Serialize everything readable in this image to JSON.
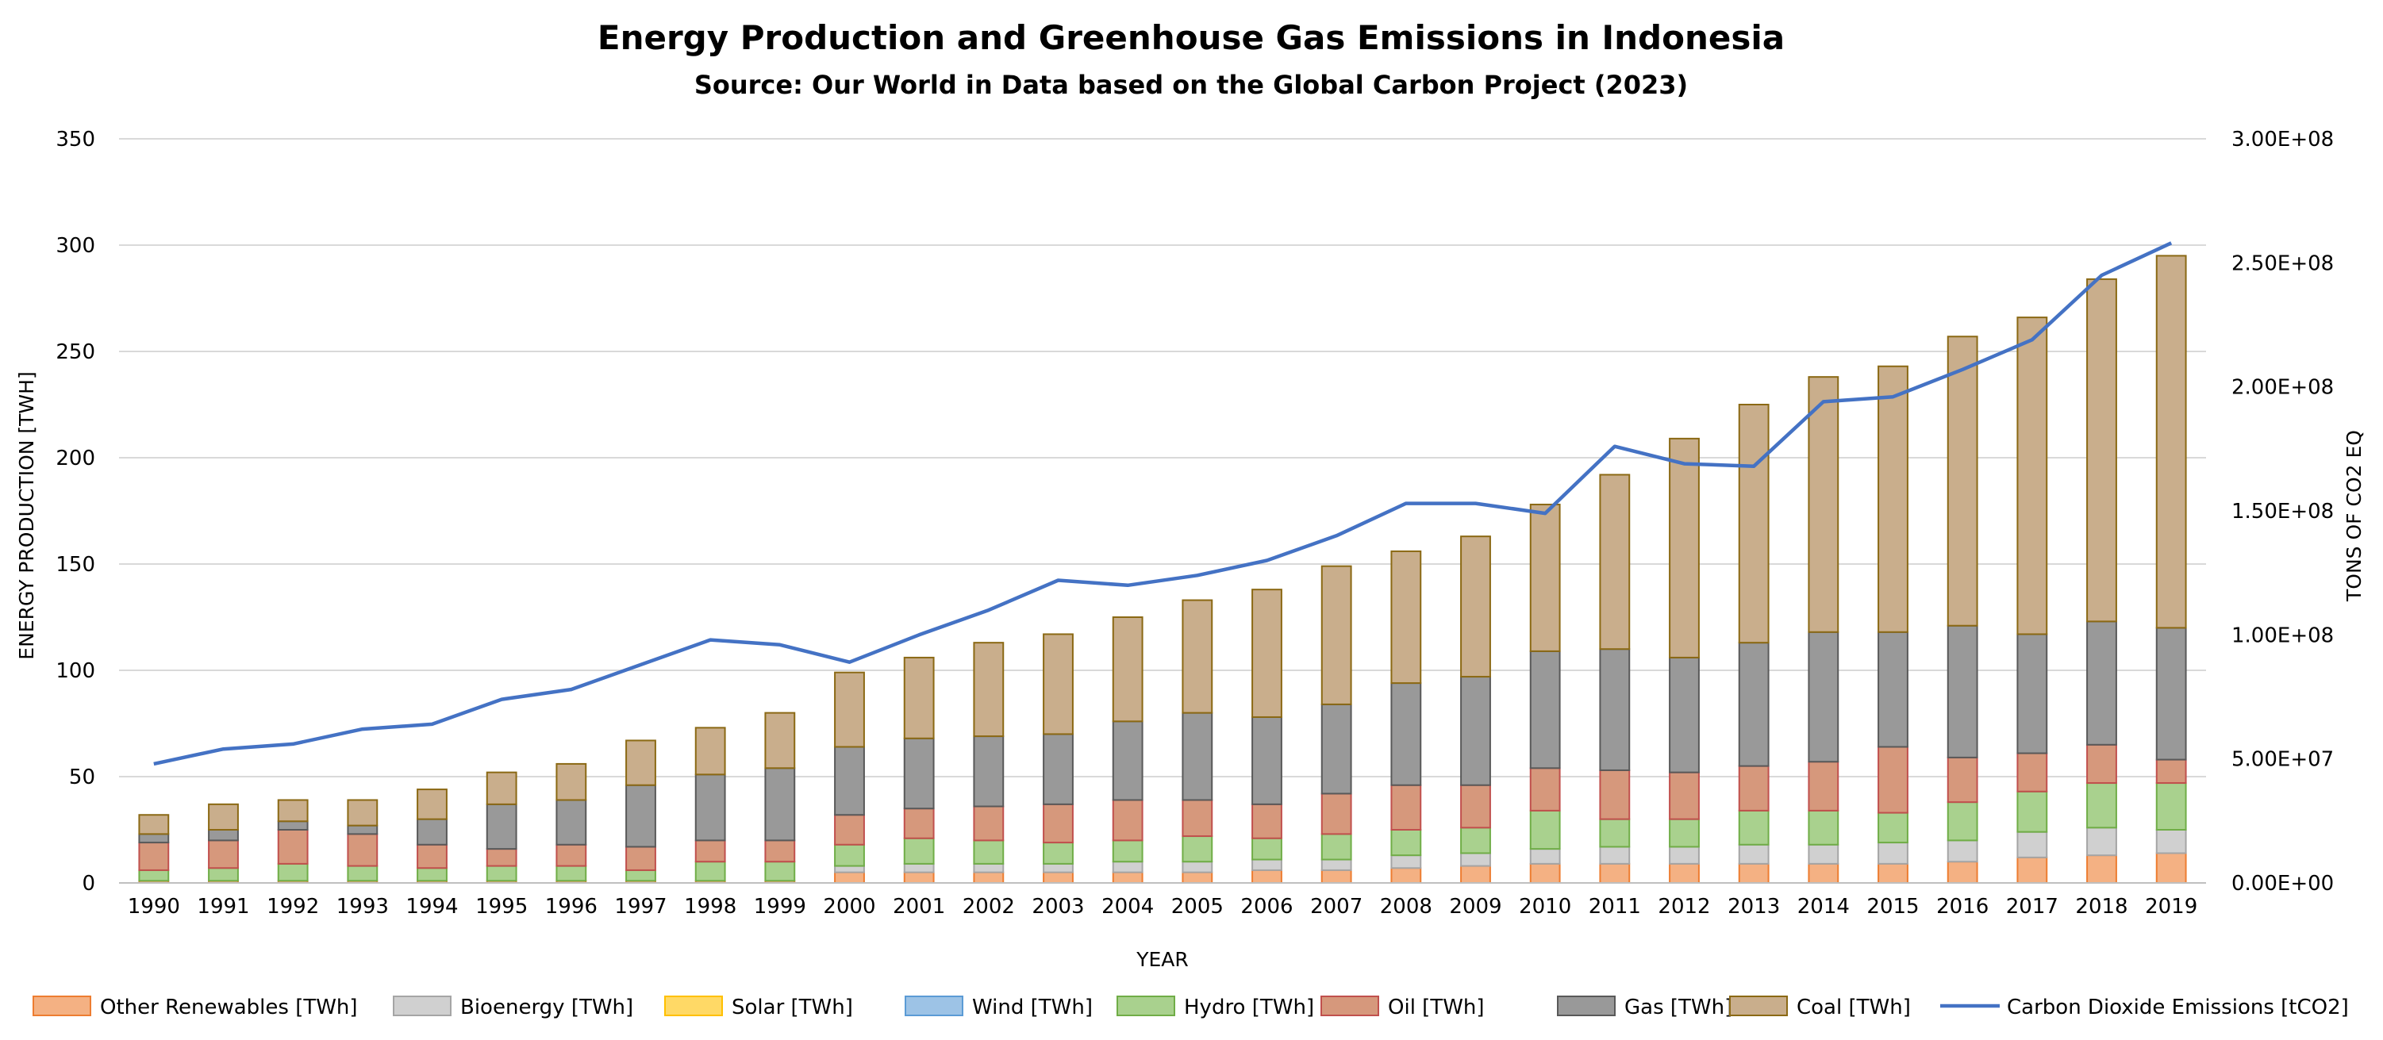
{
  "chart_data": {
    "type": "bar",
    "stacked": true,
    "title": "Energy Production and Greenhouse Gas Emissions in Indonesia",
    "subtitle": "Source: Our World in Data based on the Global Carbon Project (2023)",
    "xlabel": "YEAR",
    "ylabel": "ENERGY PRODUCTION [TWH]",
    "y2label": "TONS OF CO2 EQ",
    "ylim": [
      0,
      350
    ],
    "y2lim": [
      0,
      300000000
    ],
    "yticks": [
      "0",
      "50",
      "100",
      "150",
      "200",
      "250",
      "300",
      "350"
    ],
    "y2ticks": [
      "0.00E+00",
      "5.00E+07",
      "1.00E+08",
      "1.50E+08",
      "2.00E+08",
      "2.50E+08",
      "3.00E+08"
    ],
    "legend_position": "bottom",
    "grid": true,
    "categories": [
      "1990",
      "1991",
      "1992",
      "1993",
      "1994",
      "1995",
      "1996",
      "1997",
      "1998",
      "1999",
      "2000",
      "2001",
      "2002",
      "2003",
      "2004",
      "2005",
      "2006",
      "2007",
      "2008",
      "2009",
      "2010",
      "2011",
      "2012",
      "2013",
      "2014",
      "2015",
      "2016",
      "2017",
      "2018",
      "2019"
    ],
    "series": [
      {
        "name": "Other Renewables [TWh]",
        "color": "#f4b183",
        "edge": "#ed7d31",
        "values": [
          1,
          1,
          1,
          1,
          1,
          1,
          1,
          1,
          1,
          1,
          5,
          5,
          5,
          5,
          5,
          5,
          6,
          6,
          7,
          8,
          9,
          9,
          9,
          9,
          9,
          9,
          10,
          12,
          13,
          14
        ]
      },
      {
        "name": "Bioenergy [TWh]",
        "color": "#d0d0d0",
        "edge": "#a5a5a5",
        "values": [
          0,
          0,
          0,
          0,
          0,
          0,
          0,
          0,
          0,
          0,
          3,
          4,
          4,
          4,
          5,
          5,
          5,
          5,
          6,
          6,
          7,
          8,
          8,
          9,
          9,
          10,
          10,
          12,
          13,
          11
        ]
      },
      {
        "name": "Solar [TWh]",
        "color": "#ffd966",
        "edge": "#ffc000",
        "values": [
          0,
          0,
          0,
          0,
          0,
          0,
          0,
          0,
          0,
          0,
          0,
          0,
          0,
          0,
          0,
          0,
          0,
          0,
          0,
          0,
          0,
          0,
          0,
          0,
          0,
          0,
          0,
          0,
          0,
          0
        ]
      },
      {
        "name": "Wind [TWh]",
        "color": "#9dc3e6",
        "edge": "#5b9bd5",
        "values": [
          0,
          0,
          0,
          0,
          0,
          0,
          0,
          0,
          0,
          0,
          0,
          0,
          0,
          0,
          0,
          0,
          0,
          0,
          0,
          0,
          0,
          0,
          0,
          0,
          0,
          0,
          0,
          0,
          0,
          0
        ]
      },
      {
        "name": "Hydro [TWh]",
        "color": "#a9d18e",
        "edge": "#70ad47",
        "values": [
          5,
          6,
          8,
          7,
          6,
          7,
          7,
          5,
          9,
          9,
          10,
          12,
          11,
          10,
          10,
          12,
          10,
          12,
          12,
          12,
          18,
          13,
          13,
          16,
          16,
          14,
          18,
          19,
          21,
          22
        ]
      },
      {
        "name": "Oil [TWh]",
        "color": "#d6987c",
        "edge": "#c0504d",
        "values": [
          13,
          13,
          16,
          15,
          11,
          8,
          10,
          11,
          10,
          10,
          14,
          14,
          16,
          18,
          19,
          17,
          16,
          19,
          21,
          20,
          20,
          23,
          22,
          21,
          23,
          31,
          21,
          18,
          18,
          11
        ]
      },
      {
        "name": "Gas [TWh]",
        "color": "#999999",
        "edge": "#595959",
        "values": [
          4,
          5,
          4,
          4,
          12,
          21,
          21,
          29,
          31,
          34,
          32,
          33,
          33,
          33,
          37,
          41,
          41,
          42,
          48,
          51,
          55,
          57,
          54,
          58,
          61,
          54,
          62,
          56,
          58,
          62
        ]
      },
      {
        "name": "Coal  [TWh]",
        "color": "#c9ae8c",
        "edge": "#8b6914",
        "values": [
          9,
          12,
          10,
          12,
          14,
          15,
          17,
          21,
          22,
          26,
          35,
          38,
          44,
          47,
          49,
          53,
          60,
          65,
          62,
          66,
          69,
          82,
          103,
          112,
          120,
          125,
          136,
          149,
          161,
          175
        ]
      }
    ],
    "line_series": {
      "name": "Carbon Dioxide Emissions [tCO2]",
      "color": "#4472c4",
      "axis": "y2",
      "values": [
        48000000,
        54000000,
        56000000,
        62000000,
        64000000,
        74000000,
        78000000,
        88000000,
        98000000,
        96000000,
        89000000,
        100000000,
        110000000,
        122000000,
        120000000,
        124000000,
        130000000,
        140000000,
        153000000,
        153000000,
        149000000,
        176000000,
        169000000,
        168000000,
        194000000,
        196000000,
        207000000,
        219000000,
        245000000,
        258000000
      ]
    }
  }
}
